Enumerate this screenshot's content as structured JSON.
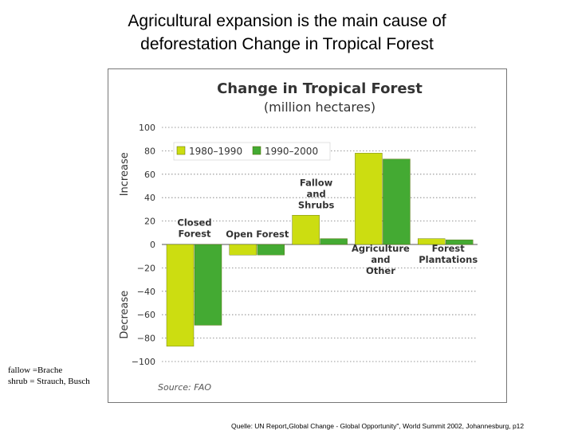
{
  "slide": {
    "title_line1": "Agricultural expansion is the main cause  of",
    "title_line2": "deforestation Change in Tropical Forest",
    "note_line1": "fallow =Brache",
    "note_line2": "shrub  = Strauch, Busch",
    "citation": "Quelle: UN Report„Global Change - Global Opportunity\", World Summit 2002, Johannesburg,  p12"
  },
  "chart_data": {
    "type": "bar",
    "title": "Change in Tropical Forest",
    "subtitle": "(million hectares)",
    "ylabel_positive": "Increase",
    "ylabel_negative": "Decrease",
    "ylim": [
      -100,
      100
    ],
    "yticks": [
      100,
      80,
      60,
      40,
      20,
      0,
      -20,
      -40,
      -60,
      -80,
      -100
    ],
    "grid": true,
    "legend_position": "top-left",
    "categories": [
      "Closed Forest",
      "Open Forest",
      "Fallow and Shrubs",
      "Agriculture and Other",
      "Forest Plantations"
    ],
    "category_label_lines": [
      [
        "Closed",
        "Forest"
      ],
      [
        "Open Forest"
      ],
      [
        "Fallow",
        "and",
        "Shrubs"
      ],
      [
        "Agriculture",
        "and",
        "Other"
      ],
      [
        "Forest",
        "Plantations"
      ]
    ],
    "series": [
      {
        "name": "1980–1990",
        "color": "#ccdd11",
        "values": [
          -87,
          -9,
          25,
          78,
          5
        ]
      },
      {
        "name": "1990–2000",
        "color": "#44aa33",
        "values": [
          -69,
          -9,
          5,
          73,
          4
        ]
      }
    ],
    "source": "Source: FAO"
  }
}
